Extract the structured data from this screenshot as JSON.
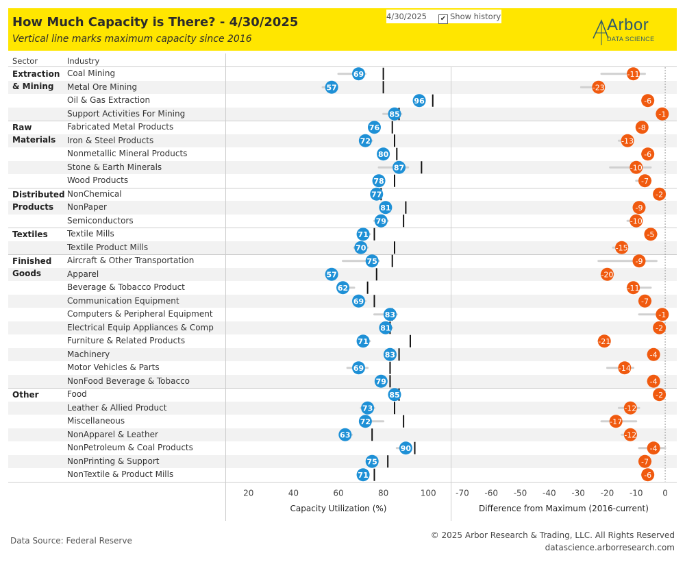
{
  "header": {
    "title": "How Much Capacity is There? - 4/30/2025",
    "subtitle": "Vertical line marks maximum capacity since 2016",
    "date_value": "4/30/2025",
    "show_history_label": "Show history",
    "show_history_checked": true,
    "logo_text": "Arbor",
    "logo_sub": "DATA SCIENCE"
  },
  "columns": {
    "sector": "Sector",
    "industry": "Industry"
  },
  "chart_data": [
    {
      "type": "dot",
      "xlabel": "Capacity Utilization (%)",
      "xlim": [
        10,
        110
      ],
      "ticks": [
        20,
        40,
        60,
        80,
        100
      ],
      "marker_color": "#1e90d6",
      "rows": [
        {
          "sector": "Extraction & Mining",
          "industry": "Coal Mining",
          "value": 69,
          "max": 80,
          "hist": [
            60,
            72
          ]
        },
        {
          "sector": "Extraction & Mining",
          "industry": "Metal Ore Mining",
          "value": 57,
          "max": 80,
          "hist": [
            53,
            58
          ]
        },
        {
          "sector": "Extraction & Mining",
          "industry": "Oil & Gas Extraction",
          "value": 96,
          "max": 102,
          "hist": [
            94,
            97
          ]
        },
        {
          "sector": "Extraction & Mining",
          "industry": "Support Activities For Mining",
          "value": 85,
          "max": 87,
          "hist": [
            80,
            88
          ]
        },
        {
          "sector": "Raw Materials",
          "industry": "Fabricated Metal Products",
          "value": 76,
          "max": 84,
          "hist": [
            75,
            78
          ]
        },
        {
          "sector": "Raw Materials",
          "industry": "Iron & Steel Products",
          "value": 72,
          "max": 85,
          "hist": [
            70,
            75
          ]
        },
        {
          "sector": "Raw Materials",
          "industry": "Nonmetallic Mineral Products",
          "value": 80,
          "max": 86,
          "hist": [
            78,
            82
          ]
        },
        {
          "sector": "Raw Materials",
          "industry": "Stone & Earth Minerals",
          "value": 87,
          "max": 97,
          "hist": [
            78,
            91
          ]
        },
        {
          "sector": "Raw Materials",
          "industry": "Wood Products",
          "value": 78,
          "max": 85,
          "hist": [
            76,
            80
          ]
        },
        {
          "sector": "Distributed Products",
          "industry": "NonChemical",
          "value": 77,
          "max": 79,
          "hist": [
            75,
            79
          ]
        },
        {
          "sector": "Distributed Products",
          "industry": "NonPaper",
          "value": 81,
          "max": 90,
          "hist": [
            79,
            83
          ]
        },
        {
          "sector": "Distributed Products",
          "industry": "Semiconductors",
          "value": 79,
          "max": 89,
          "hist": [
            76,
            82
          ]
        },
        {
          "sector": "Textiles",
          "industry": "Textile Mills",
          "value": 71,
          "max": 76,
          "hist": [
            70,
            74
          ]
        },
        {
          "sector": "Textiles",
          "industry": "Textile Product Mills",
          "value": 70,
          "max": 85,
          "hist": [
            67,
            73
          ]
        },
        {
          "sector": "Finished Goods",
          "industry": "Aircraft & Other Transportation",
          "value": 75,
          "max": 84,
          "hist": [
            62,
            78
          ]
        },
        {
          "sector": "Finished Goods",
          "industry": "Apparel",
          "value": 57,
          "max": 77,
          "hist": [
            56,
            59
          ]
        },
        {
          "sector": "Finished Goods",
          "industry": "Beverage & Tobacco Product",
          "value": 62,
          "max": 73,
          "hist": [
            60,
            67
          ]
        },
        {
          "sector": "Finished Goods",
          "industry": "Communication Equipment",
          "value": 69,
          "max": 76,
          "hist": [
            67,
            72
          ]
        },
        {
          "sector": "Finished Goods",
          "industry": "Computers & Peripheral Equipment",
          "value": 83,
          "max": 84,
          "hist": [
            76,
            86
          ]
        },
        {
          "sector": "Finished Goods",
          "industry": "Electrical Equip Appliances & Comp",
          "value": 81,
          "max": 83,
          "hist": [
            79,
            84
          ]
        },
        {
          "sector": "Finished Goods",
          "industry": "Furniture & Related Products",
          "value": 71,
          "max": 92,
          "hist": [
            69,
            74
          ]
        },
        {
          "sector": "Finished Goods",
          "industry": "Machinery",
          "value": 83,
          "max": 87,
          "hist": [
            82,
            85
          ]
        },
        {
          "sector": "Finished Goods",
          "industry": "Motor Vehicles & Parts",
          "value": 69,
          "max": 83,
          "hist": [
            64,
            73
          ]
        },
        {
          "sector": "Finished Goods",
          "industry": "NonFood Beverage & Tobacco",
          "value": 79,
          "max": 83,
          "hist": [
            77,
            80
          ]
        },
        {
          "sector": "Other",
          "industry": "Food",
          "value": 85,
          "max": 87,
          "hist": [
            84,
            87
          ]
        },
        {
          "sector": "Other",
          "industry": "Leather & Allied Product",
          "value": 73,
          "max": 85,
          "hist": [
            70,
            76
          ]
        },
        {
          "sector": "Other",
          "industry": "Miscellaneous",
          "value": 72,
          "max": 89,
          "hist": [
            70,
            80
          ]
        },
        {
          "sector": "Other",
          "industry": "NonApparel & Leather",
          "value": 63,
          "max": 75,
          "hist": [
            61,
            66
          ]
        },
        {
          "sector": "Other",
          "industry": "NonPetroleum & Coal Products",
          "value": 90,
          "max": 94,
          "hist": [
            86,
            92
          ]
        },
        {
          "sector": "Other",
          "industry": "NonPrinting & Support",
          "value": 75,
          "max": 82,
          "hist": [
            74,
            77
          ]
        },
        {
          "sector": "Other",
          "industry": "NonTextile & Product Mills",
          "value": 71,
          "max": 76,
          "hist": [
            70,
            73
          ]
        }
      ]
    },
    {
      "type": "dot",
      "xlabel": "Difference from Maximum (2016-current)",
      "xlim": [
        -74,
        4
      ],
      "ticks": [
        -70,
        -60,
        -50,
        -40,
        -30,
        -20,
        -10,
        0
      ],
      "marker_color": "#f05a0f",
      "values": [
        -11,
        -23,
        -6,
        -1,
        -8,
        -13,
        -6,
        -10,
        -7,
        -2,
        -9,
        -10,
        -5,
        -15,
        -9,
        -20,
        -11,
        -7,
        -1,
        -2,
        -21,
        -4,
        -14,
        -4,
        -2,
        -12,
        -17,
        -12,
        -4,
        -7,
        -6
      ],
      "hist": [
        [
          -22,
          -7
        ],
        [
          -29,
          -22
        ],
        [
          -8,
          -5
        ],
        [
          -3,
          0
        ],
        [
          -9,
          -7
        ],
        [
          -16,
          -12
        ],
        [
          -8,
          -5
        ],
        [
          -19,
          -5
        ],
        [
          -10,
          -5
        ],
        [
          -3,
          -1
        ],
        [
          -10,
          -8
        ],
        [
          -13,
          -8
        ],
        [
          -6,
          -3
        ],
        [
          -18,
          -13
        ],
        [
          -23,
          -3
        ],
        [
          -22,
          -18
        ],
        [
          -13,
          -5
        ],
        [
          -9,
          -5
        ],
        [
          -9,
          0
        ],
        [
          -3,
          -1
        ],
        [
          -23,
          -20
        ],
        [
          -6,
          -3
        ],
        [
          -20,
          -11
        ],
        [
          -6,
          -3
        ],
        [
          -3,
          -1
        ],
        [
          -16,
          -9
        ],
        [
          -22,
          -10
        ],
        [
          -15,
          -10
        ],
        [
          -9,
          0
        ],
        [
          -8,
          -5
        ],
        [
          -8,
          -5
        ]
      ]
    }
  ],
  "footer": {
    "source": "Data Source: Federal Reserve",
    "copyright": "© 2025 Arbor Research & Trading, LLC. All Rights Reserved",
    "website": "datascience.arborresearch.com"
  }
}
